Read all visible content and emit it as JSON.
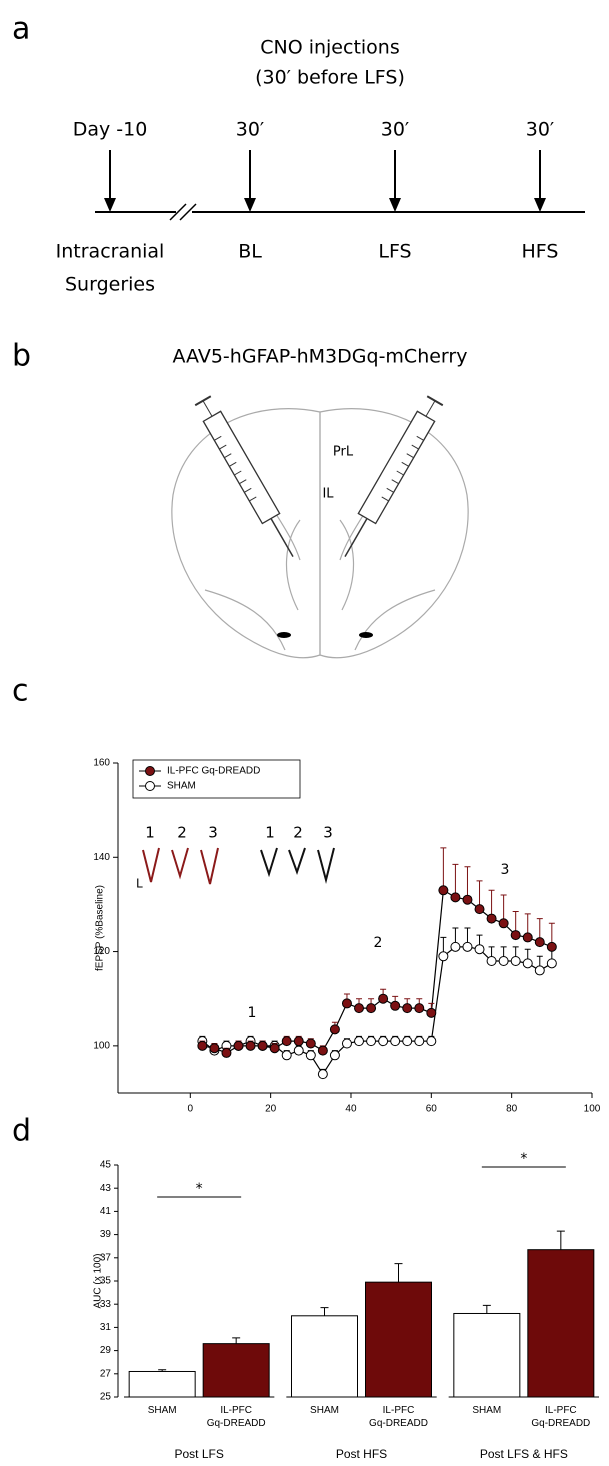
{
  "panel_a": {
    "label": "a",
    "title": [
      "CNO injections",
      "(30′ before LFS)"
    ],
    "timepoints": [
      {
        "top": "Day -10",
        "bottom": [
          "Intracranial",
          "Surgeries"
        ]
      },
      {
        "top": "30′",
        "bottom": [
          "BL"
        ]
      },
      {
        "top": "30′",
        "bottom": [
          "LFS"
        ]
      },
      {
        "top": "30′",
        "bottom": [
          "HFS"
        ]
      }
    ]
  },
  "panel_b": {
    "label": "b",
    "title": "AAV5-hGFAP-hM3DGq-mCherry",
    "regions": [
      "PrL",
      "IL"
    ]
  },
  "chart_data": [
    {
      "panel": "c",
      "type": "line",
      "y_label": "fEPSP (%Baseline)",
      "x": [
        3,
        6,
        9,
        12,
        15,
        18,
        21,
        24,
        27,
        30,
        33,
        36,
        39,
        42,
        45,
        48,
        51,
        54,
        57,
        60,
        63,
        66,
        69,
        72,
        75,
        78,
        81,
        84,
        87,
        90
      ],
      "xlim": [
        -18,
        100
      ],
      "xticks": [
        0,
        20,
        40,
        60,
        80,
        100
      ],
      "ylim": [
        90,
        160
      ],
      "yticks": [
        100,
        120,
        140,
        160
      ],
      "legend": "upper left",
      "series": [
        {
          "name": "IL-PFC Gq-DREADD",
          "color": "#7b1113",
          "marker_fill": "#7b1113",
          "values": [
            100,
            99.5,
            98.5,
            100,
            100,
            100,
            99.5,
            101,
            101,
            100.5,
            99,
            103.5,
            109,
            108,
            108,
            110,
            108.5,
            108,
            108,
            107,
            133,
            131.5,
            131,
            129,
            127,
            126,
            123.5,
            123,
            122,
            121
          ],
          "errors": [
            1,
            1,
            1,
            1,
            1,
            1,
            1,
            1,
            1,
            1,
            1,
            1.5,
            2,
            2,
            2,
            2,
            2,
            2,
            2,
            2,
            9,
            7,
            7,
            6,
            6,
            6,
            5,
            5,
            5,
            5
          ]
        },
        {
          "name": "SHAM",
          "color": "#000000",
          "marker_fill": "#ffffff",
          "values": [
            101,
            99,
            100,
            100,
            101,
            100,
            100,
            98,
            99,
            98,
            94,
            98,
            100.5,
            101,
            101,
            101,
            101,
            101,
            101,
            101,
            119,
            121,
            121,
            120.5,
            118,
            118,
            118,
            117.5,
            116,
            117.5
          ],
          "errors": [
            1,
            1,
            1,
            1,
            1,
            1,
            1,
            1,
            1,
            1,
            1,
            1,
            1,
            1,
            1,
            1,
            1,
            1,
            1,
            1,
            4,
            4,
            4,
            3,
            3,
            3,
            3,
            3,
            3,
            3
          ]
        }
      ],
      "annotations": [
        "1",
        "2",
        "3"
      ],
      "inset_labels": [
        "1",
        "2",
        "3"
      ],
      "inset_scale_label": "L"
    },
    {
      "panel": "d",
      "type": "bar",
      "y_label": "AUC (x 100)",
      "categories": [
        "Post LFS",
        "Post HFS",
        "Post LFS & HFS"
      ],
      "ylim": [
        25,
        45
      ],
      "yticks": [
        25,
        27,
        29,
        31,
        33,
        35,
        37,
        39,
        41,
        43,
        45
      ],
      "series": [
        {
          "name": "SHAM",
          "color": "#ffffff",
          "values": [
            27.2,
            32,
            32.2
          ],
          "errors": [
            0.15,
            0.7,
            0.7
          ]
        },
        {
          "name": "IL-PFC Gq-DREADD",
          "color": "#6e0a0a",
          "values": [
            29.6,
            34.9,
            37.7
          ],
          "errors": [
            0.5,
            1.6,
            1.6
          ]
        }
      ],
      "significance": [
        {
          "category": 0,
          "label": "*"
        },
        {
          "category": 2,
          "label": "*"
        }
      ]
    }
  ]
}
